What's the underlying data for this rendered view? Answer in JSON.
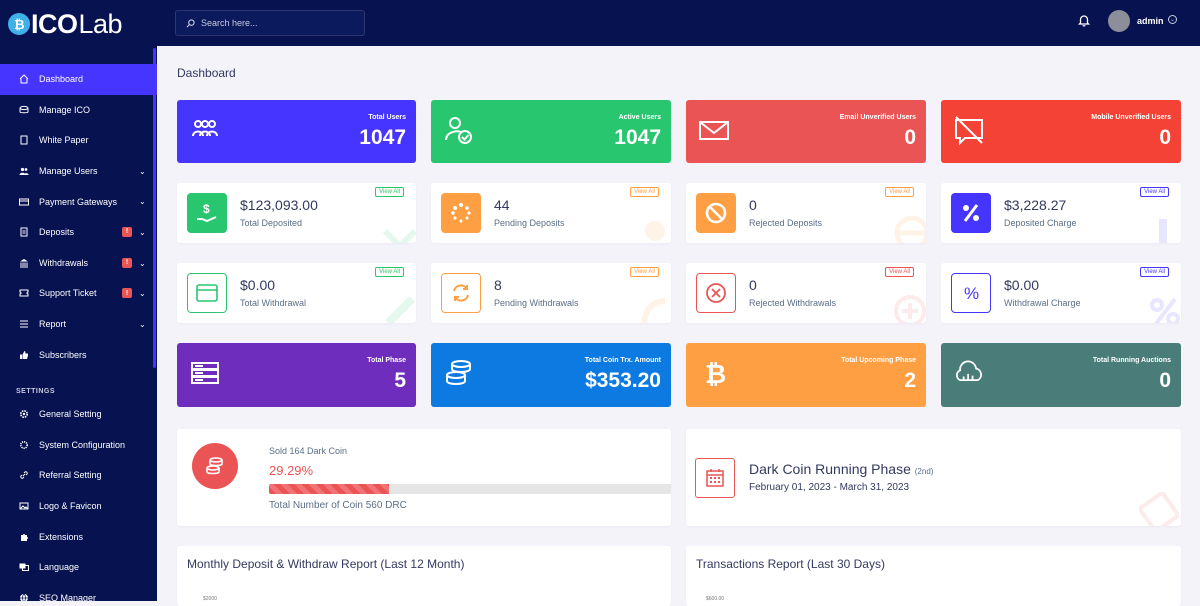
{
  "brand": {
    "logo_ico": "ICO",
    "logo_lab": "Lab"
  },
  "search": {
    "placeholder": "Search here..."
  },
  "user": {
    "name": "admin"
  },
  "sidebar": {
    "items": [
      {
        "label": "Dashboard",
        "icon": "home-icon"
      },
      {
        "label": "Manage ICO",
        "icon": "coins-icon"
      },
      {
        "label": "White Paper",
        "icon": "document-icon"
      },
      {
        "label": "Manage Users",
        "icon": "users-icon"
      },
      {
        "label": "Payment Gateways",
        "icon": "credit-card-icon"
      },
      {
        "label": "Deposits",
        "icon": "deposit-icon",
        "badge": "!"
      },
      {
        "label": "Withdrawals",
        "icon": "bank-icon",
        "badge": "!"
      },
      {
        "label": "Support Ticket",
        "icon": "ticket-icon",
        "badge": "!"
      },
      {
        "label": "Report",
        "icon": "list-icon"
      },
      {
        "label": "Subscribers",
        "icon": "thumbs-up-icon"
      }
    ],
    "settings_heading": "SETTINGS",
    "settings_items": [
      {
        "label": "General Setting",
        "icon": "gear-icon"
      },
      {
        "label": "System Configuration",
        "icon": "cog-icon"
      },
      {
        "label": "Referral Setting",
        "icon": "link-icon"
      },
      {
        "label": "Logo & Favicon",
        "icon": "image-icon"
      },
      {
        "label": "Extensions",
        "icon": "puzzle-icon"
      },
      {
        "label": "Language",
        "icon": "language-icon"
      },
      {
        "label": "SEO Manager",
        "icon": "globe-icon"
      }
    ]
  },
  "page_title": "Dashboard",
  "stats_top": [
    {
      "label": "Total Users",
      "value": "1047",
      "color": "#4634ff"
    },
    {
      "label": "Active Users",
      "value": "1047",
      "color": "#28c76f"
    },
    {
      "label": "Email Unverified Users",
      "value": "0",
      "color": "#ea5455"
    },
    {
      "label": "Mobile Unverified Users",
      "value": "0",
      "color": "#f44336"
    }
  ],
  "stats_deposits": [
    {
      "value": "$123,093.00",
      "label": "Total Deposited",
      "view_all": "View All",
      "color": "#28c76f"
    },
    {
      "value": "44",
      "label": "Pending Deposits",
      "view_all": "View All",
      "color": "#ff9f43"
    },
    {
      "value": "0",
      "label": "Rejected Deposits",
      "view_all": "View All",
      "color": "#ff9f43"
    },
    {
      "value": "$3,228.27",
      "label": "Deposited Charge",
      "view_all": "View All",
      "color": "#4634ff"
    }
  ],
  "stats_withdrawals": [
    {
      "value": "$0.00",
      "label": "Total Withdrawal",
      "view_all": "View All",
      "color": "#28c76f"
    },
    {
      "value": "8",
      "label": "Pending Withdrawals",
      "view_all": "View All",
      "color": "#ff9f43"
    },
    {
      "value": "0",
      "label": "Rejected Withdrawals",
      "view_all": "View All",
      "color": "#ea5455"
    },
    {
      "value": "$0.00",
      "label": "Withdrawal Charge",
      "view_all": "View All",
      "color": "#4634ff"
    }
  ],
  "stats_bottom": [
    {
      "label": "Total Phase",
      "value": "5",
      "color": "#6f2dbd"
    },
    {
      "label": "Total Coin Trx. Amount",
      "value": "$353.20",
      "color": "#0c7ae0"
    },
    {
      "label": "Total Upcoming Phase",
      "value": "2",
      "color": "#ff9f43"
    },
    {
      "label": "Total Running Auctions",
      "value": "0",
      "color": "#4a7c7a"
    }
  ],
  "sold": {
    "title": "Sold 164 Dark Coin",
    "percent_text": "29.29%",
    "progress": 0.2929,
    "total": "Total Number of Coin 560 DRC"
  },
  "phase": {
    "title": "Dark Coin Running Phase",
    "tag": "(2nd)",
    "dates": "February 01, 2023 - March 31, 2023"
  },
  "reports": {
    "monthly": "Monthly Deposit & Withdraw Report (Last 12 Month)",
    "transactions": "Transactions Report (Last 30 Days)",
    "monthly_tick": "$2000",
    "trx_tick": "$600.00"
  }
}
